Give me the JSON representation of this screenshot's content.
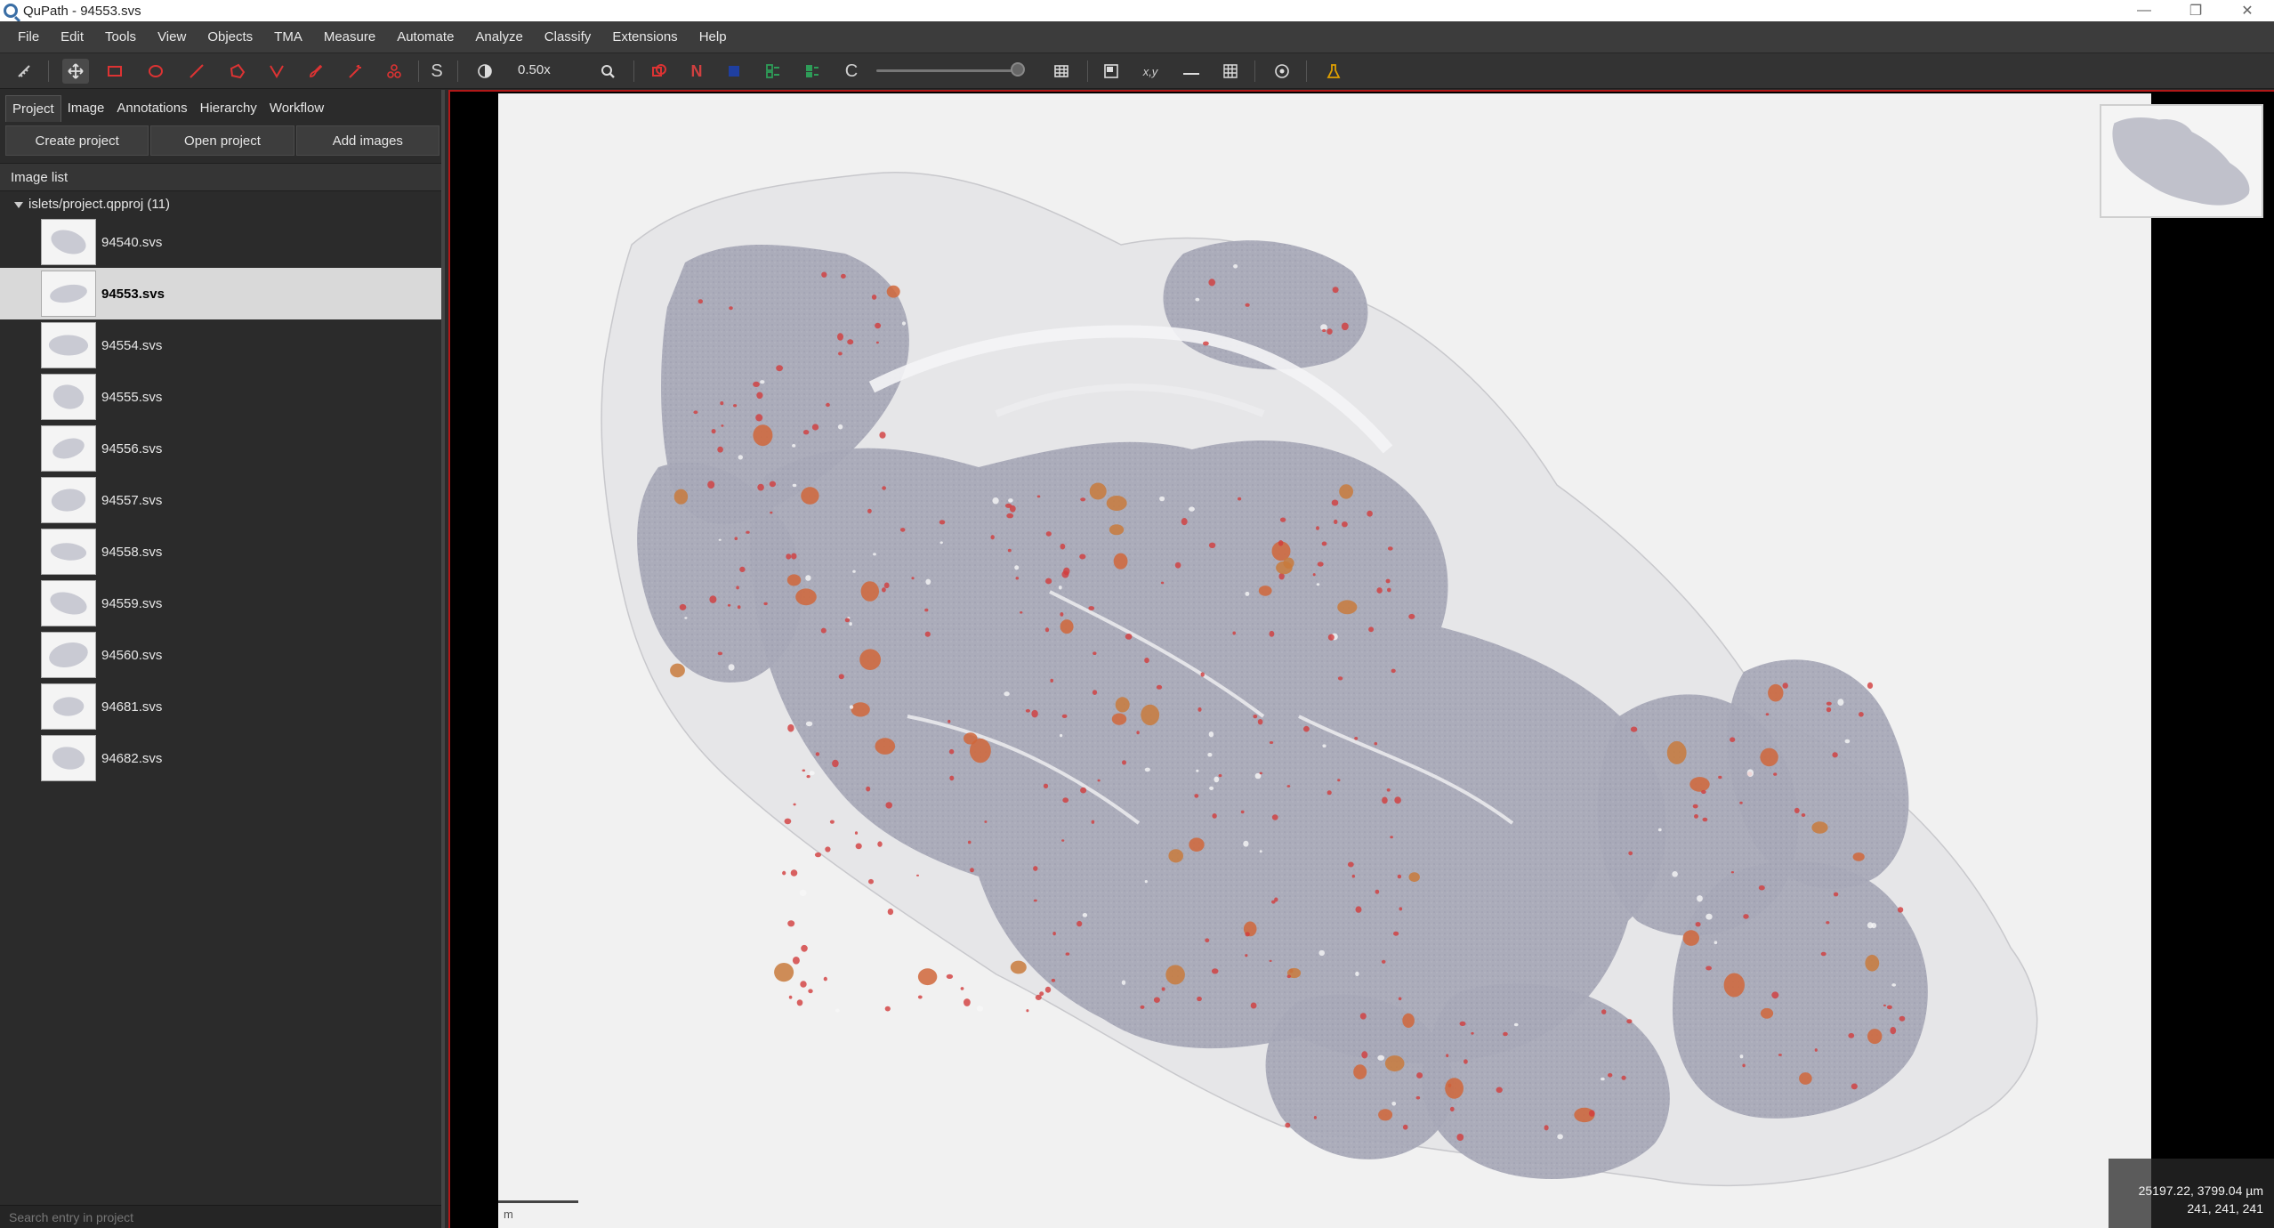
{
  "window": {
    "title": "QuPath - 94553.svs",
    "minimize": "—",
    "restore": "❐",
    "close": "✕"
  },
  "menubar": [
    "File",
    "Edit",
    "Tools",
    "View",
    "Objects",
    "TMA",
    "Measure",
    "Automate",
    "Analyze",
    "Classify",
    "Extensions",
    "Help"
  ],
  "toolbar": {
    "zoom_label": "0.50x",
    "s_label": "S",
    "n_label": "N",
    "c_label": "C",
    "xy_label": "x,y",
    "um_label": "µm",
    "zoom_level": "0.50x"
  },
  "left_panel": {
    "tabs": [
      "Project",
      "Image",
      "Annotations",
      "Hierarchy",
      "Workflow"
    ],
    "buttons": {
      "create": "Create project",
      "open": "Open project",
      "add": "Add images"
    },
    "image_list_title": "Image list",
    "project_root": "islets/project.qpproj (11)",
    "images": [
      {
        "name": "94540.svs"
      },
      {
        "name": "94553.svs",
        "selected": true
      },
      {
        "name": "94554.svs"
      },
      {
        "name": "94555.svs"
      },
      {
        "name": "94556.svs"
      },
      {
        "name": "94557.svs"
      },
      {
        "name": "94558.svs"
      },
      {
        "name": "94559.svs"
      },
      {
        "name": "94560.svs"
      },
      {
        "name": "94681.svs"
      },
      {
        "name": "94682.svs"
      }
    ],
    "search_placeholder": "Search entry in project"
  },
  "viewer": {
    "coordinates": "25197.22, 3799.04 µm",
    "rgb": "241, 241, 241",
    "scale_text": "m",
    "border_color": "#b01818"
  }
}
